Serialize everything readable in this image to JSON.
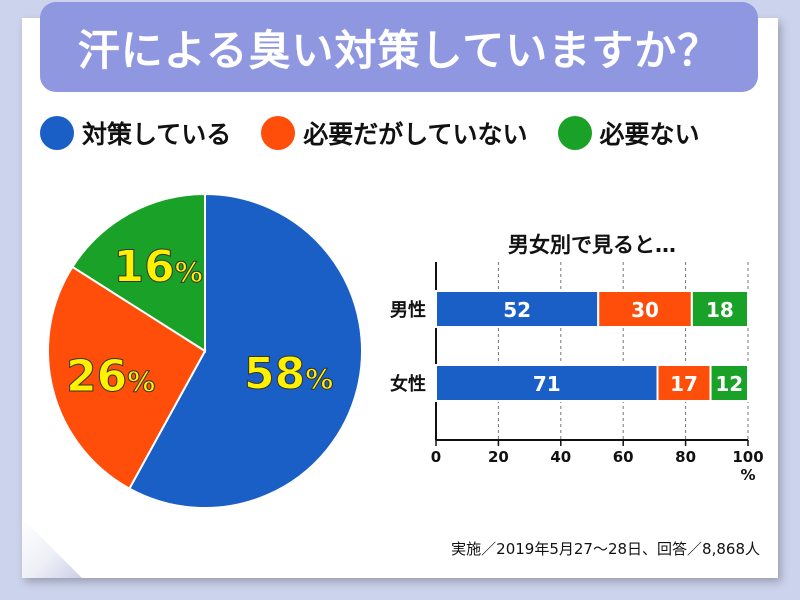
{
  "title": "汗による臭い対策していますか？",
  "legend": [
    {
      "label": "対策している",
      "color": "#1a5fc6"
    },
    {
      "label": "必要だがしていない",
      "color": "#ff4d0a"
    },
    {
      "label": "必要ない",
      "color": "#1aa228"
    }
  ],
  "chart_data": [
    {
      "type": "pie",
      "categories": [
        "対策している",
        "必要だがしていない",
        "必要ない"
      ],
      "values": [
        58,
        26,
        16
      ],
      "labels": [
        "58",
        "26",
        "16"
      ],
      "unit": "%",
      "colors": [
        "#1a5fc6",
        "#ff4d0a",
        "#1aa228"
      ],
      "label_color": "#fff200"
    },
    {
      "type": "bar",
      "orientation": "horizontal",
      "stacked": true,
      "title": "男女別で見ると…",
      "categories": [
        "男性",
        "女性"
      ],
      "series": [
        {
          "name": "対策している",
          "values": [
            52,
            71
          ],
          "color": "#1a5fc6"
        },
        {
          "name": "必要だがしていない",
          "values": [
            30,
            17
          ],
          "color": "#ff4d0a"
        },
        {
          "name": "必要ない",
          "values": [
            18,
            12
          ],
          "color": "#1aa228"
        }
      ],
      "xlim": [
        0,
        100
      ],
      "xticks": [
        "0",
        "20",
        "40",
        "60",
        "80",
        "100"
      ],
      "xunit": "%",
      "grid": "vertical dashed"
    }
  ],
  "footer": "実施／2019年5月27～28日、回答／8,868人"
}
